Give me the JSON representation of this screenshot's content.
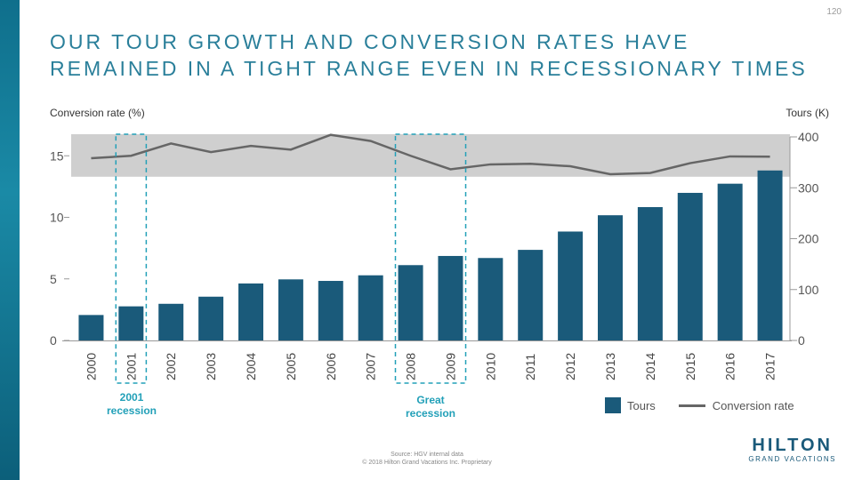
{
  "page_number": "120",
  "title": "OUR TOUR GROWTH AND CONVERSION RATES HAVE REMAINED IN A TIGHT RANGE EVEN IN RECESSIONARY TIMES",
  "left_axis_label": "Conversion rate (%)",
  "right_axis_label": "Tours (K)",
  "annotations": {
    "recession_2001": "2001 recession",
    "great_recession": "Great recession"
  },
  "legend": {
    "tours": "Tours",
    "conversion": "Conversion rate"
  },
  "footer": {
    "source": "Source: HGV internal data",
    "copyright": "© 2018 Hilton Grand Vacations Inc. Proprietary"
  },
  "logo": {
    "main": "HILTON",
    "sub": "GRAND VACATIONS"
  },
  "colors": {
    "bar": "#1a5a7a",
    "line": "#666666",
    "band": "#cfcfcf",
    "annotation": "#22a0b8",
    "title": "#2a7f9a"
  },
  "chart_data": {
    "type": "bar",
    "categories": [
      "2000",
      "2001",
      "2002",
      "2003",
      "2004",
      "2005",
      "2006",
      "2007",
      "2008",
      "2009",
      "2010",
      "2011",
      "2012",
      "2013",
      "2014",
      "2015",
      "2016",
      "2017"
    ],
    "series": [
      {
        "name": "Tours",
        "type": "bar",
        "axis": "right",
        "values": [
          50,
          67,
          72,
          86,
          112,
          120,
          117,
          128,
          148,
          166,
          162,
          178,
          214,
          246,
          262,
          290,
          308,
          334
        ]
      },
      {
        "name": "Conversion rate",
        "type": "line",
        "axis": "left",
        "values": [
          14.8,
          15.0,
          16.0,
          15.3,
          15.8,
          15.5,
          16.7,
          16.2,
          15.0,
          13.9,
          14.3,
          14.35,
          14.15,
          13.5,
          13.6,
          14.4,
          14.95,
          14.93
        ]
      }
    ],
    "left_axis": {
      "ylim": [
        0,
        16.5
      ],
      "ticks": [
        0,
        5,
        10,
        15
      ]
    },
    "right_axis": {
      "ylim": [
        0,
        400
      ],
      "ticks": [
        0,
        100,
        200,
        300,
        400
      ]
    },
    "band": {
      "from": 13.3,
      "to": 16.5
    },
    "recession_years": [
      [
        "2001"
      ],
      [
        "2008",
        "2009"
      ]
    ]
  }
}
